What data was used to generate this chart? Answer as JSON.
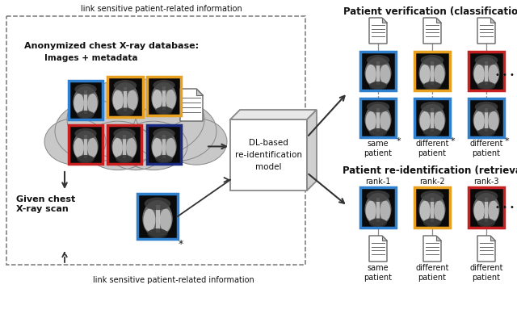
{
  "top_link_text": "link sensitive patient-related information",
  "bottom_link_text": "link sensitive patient-related information",
  "db_title": "Anonymized chest X-ray database:",
  "db_subtitle": "Images + metadata",
  "model_text": "DL-based\nre-identification\nmodel",
  "query_title": "Given chest\nX-ray scan",
  "verif_title": "Patient verification (classification)",
  "reid_title": "Patient re-identification (retrieval)",
  "verif_labels": [
    "same\npatient",
    "different\npatient",
    "different\npatient"
  ],
  "reid_labels": [
    "same\npatient",
    "different\npatient",
    "different\npatient"
  ],
  "rank_labels": [
    "rank-1",
    "rank-2",
    "rank-3"
  ],
  "colors": {
    "blue": "#3080D0",
    "orange": "#E8A020",
    "red": "#C82020",
    "dark_navy": "#1A2A80",
    "background": "#FFFFFF",
    "cloud_fill": "#C8C8C8",
    "cloud_edge": "#888888",
    "text_dark": "#111111",
    "arrow": "#333333",
    "model_edge": "#888888",
    "dashed": "#777777"
  },
  "fig_width": 6.4,
  "fig_height": 3.89,
  "dpi": 100
}
